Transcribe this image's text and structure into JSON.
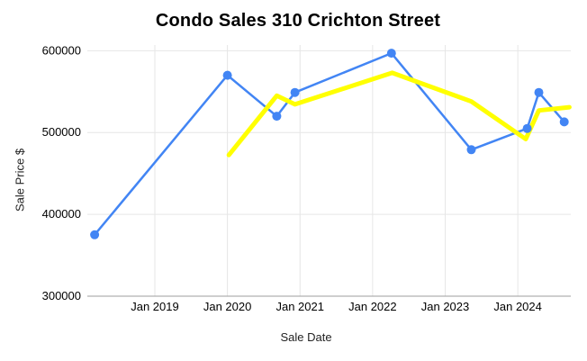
{
  "chart_data": {
    "type": "line",
    "title": "Condo Sales 310 Crichton Street",
    "xlabel": "Sale Date",
    "ylabel": "Sale Price $",
    "xlim": [
      2018.07,
      2024.73
    ],
    "ylim": [
      300000,
      607000
    ],
    "grid": true,
    "legend_position": "none",
    "background": "#ffffff",
    "style": {
      "grid_color": "#e6e6e6",
      "axis_line_color": "#9e9e9e",
      "tick_color": "#000000",
      "title_color": "#000000",
      "tick_font_size": 13
    },
    "x_ticks": [
      {
        "label": "Jan 2019",
        "value": 2019
      },
      {
        "label": "Jan 2020",
        "value": 2020
      },
      {
        "label": "Jan 2021",
        "value": 2021
      },
      {
        "label": "Jan 2022",
        "value": 2022
      },
      {
        "label": "Jan 2023",
        "value": 2023
      },
      {
        "label": "Jan 2024",
        "value": 2024
      }
    ],
    "y_ticks": [
      {
        "label": "300000",
        "value": 300000
      },
      {
        "label": "400000",
        "value": 400000
      },
      {
        "label": "500000",
        "value": 500000
      },
      {
        "label": "600000",
        "value": 600000
      }
    ],
    "series": [
      {
        "id": "sale-price",
        "color": "#4285f4",
        "line_width": 2.5,
        "marker": {
          "shape": "circle",
          "radius": 5
        },
        "points": [
          {
            "date": "Mar 2018",
            "x": 2018.17,
            "y": 375000
          },
          {
            "date": "Jan 2020",
            "x": 2020.0,
            "y": 570000
          },
          {
            "date": "Sep 2020",
            "x": 2020.68,
            "y": 520000
          },
          {
            "date": "Dec 2020",
            "x": 2020.93,
            "y": 549000
          },
          {
            "date": "Apr 2022",
            "x": 2022.26,
            "y": 597000
          },
          {
            "date": "May 2023",
            "x": 2023.36,
            "y": 479000
          },
          {
            "date": "Feb 2024",
            "x": 2024.13,
            "y": 505000
          },
          {
            "date": "Apr 2024",
            "x": 2024.29,
            "y": 549000
          },
          {
            "date": "Aug 2024",
            "x": 2024.64,
            "y": 513000
          }
        ]
      },
      {
        "id": "trend",
        "color": "#ffff00",
        "line_width": 5,
        "marker": null,
        "points": [
          {
            "date": "Jan 2020",
            "x": 2020.02,
            "y": 472500
          },
          {
            "date": "Sep 2020",
            "x": 2020.68,
            "y": 545000
          },
          {
            "date": "Dec 2020",
            "x": 2020.93,
            "y": 534500
          },
          {
            "date": "Apr 2022",
            "x": 2022.27,
            "y": 573000
          },
          {
            "date": "May 2023",
            "x": 2023.36,
            "y": 538000
          },
          {
            "date": "Feb 2024",
            "x": 2024.11,
            "y": 492000
          },
          {
            "date": "Apr 2024",
            "x": 2024.29,
            "y": 527000
          },
          {
            "date": "Sep 2024",
            "x": 2024.71,
            "y": 531000
          }
        ]
      }
    ]
  }
}
